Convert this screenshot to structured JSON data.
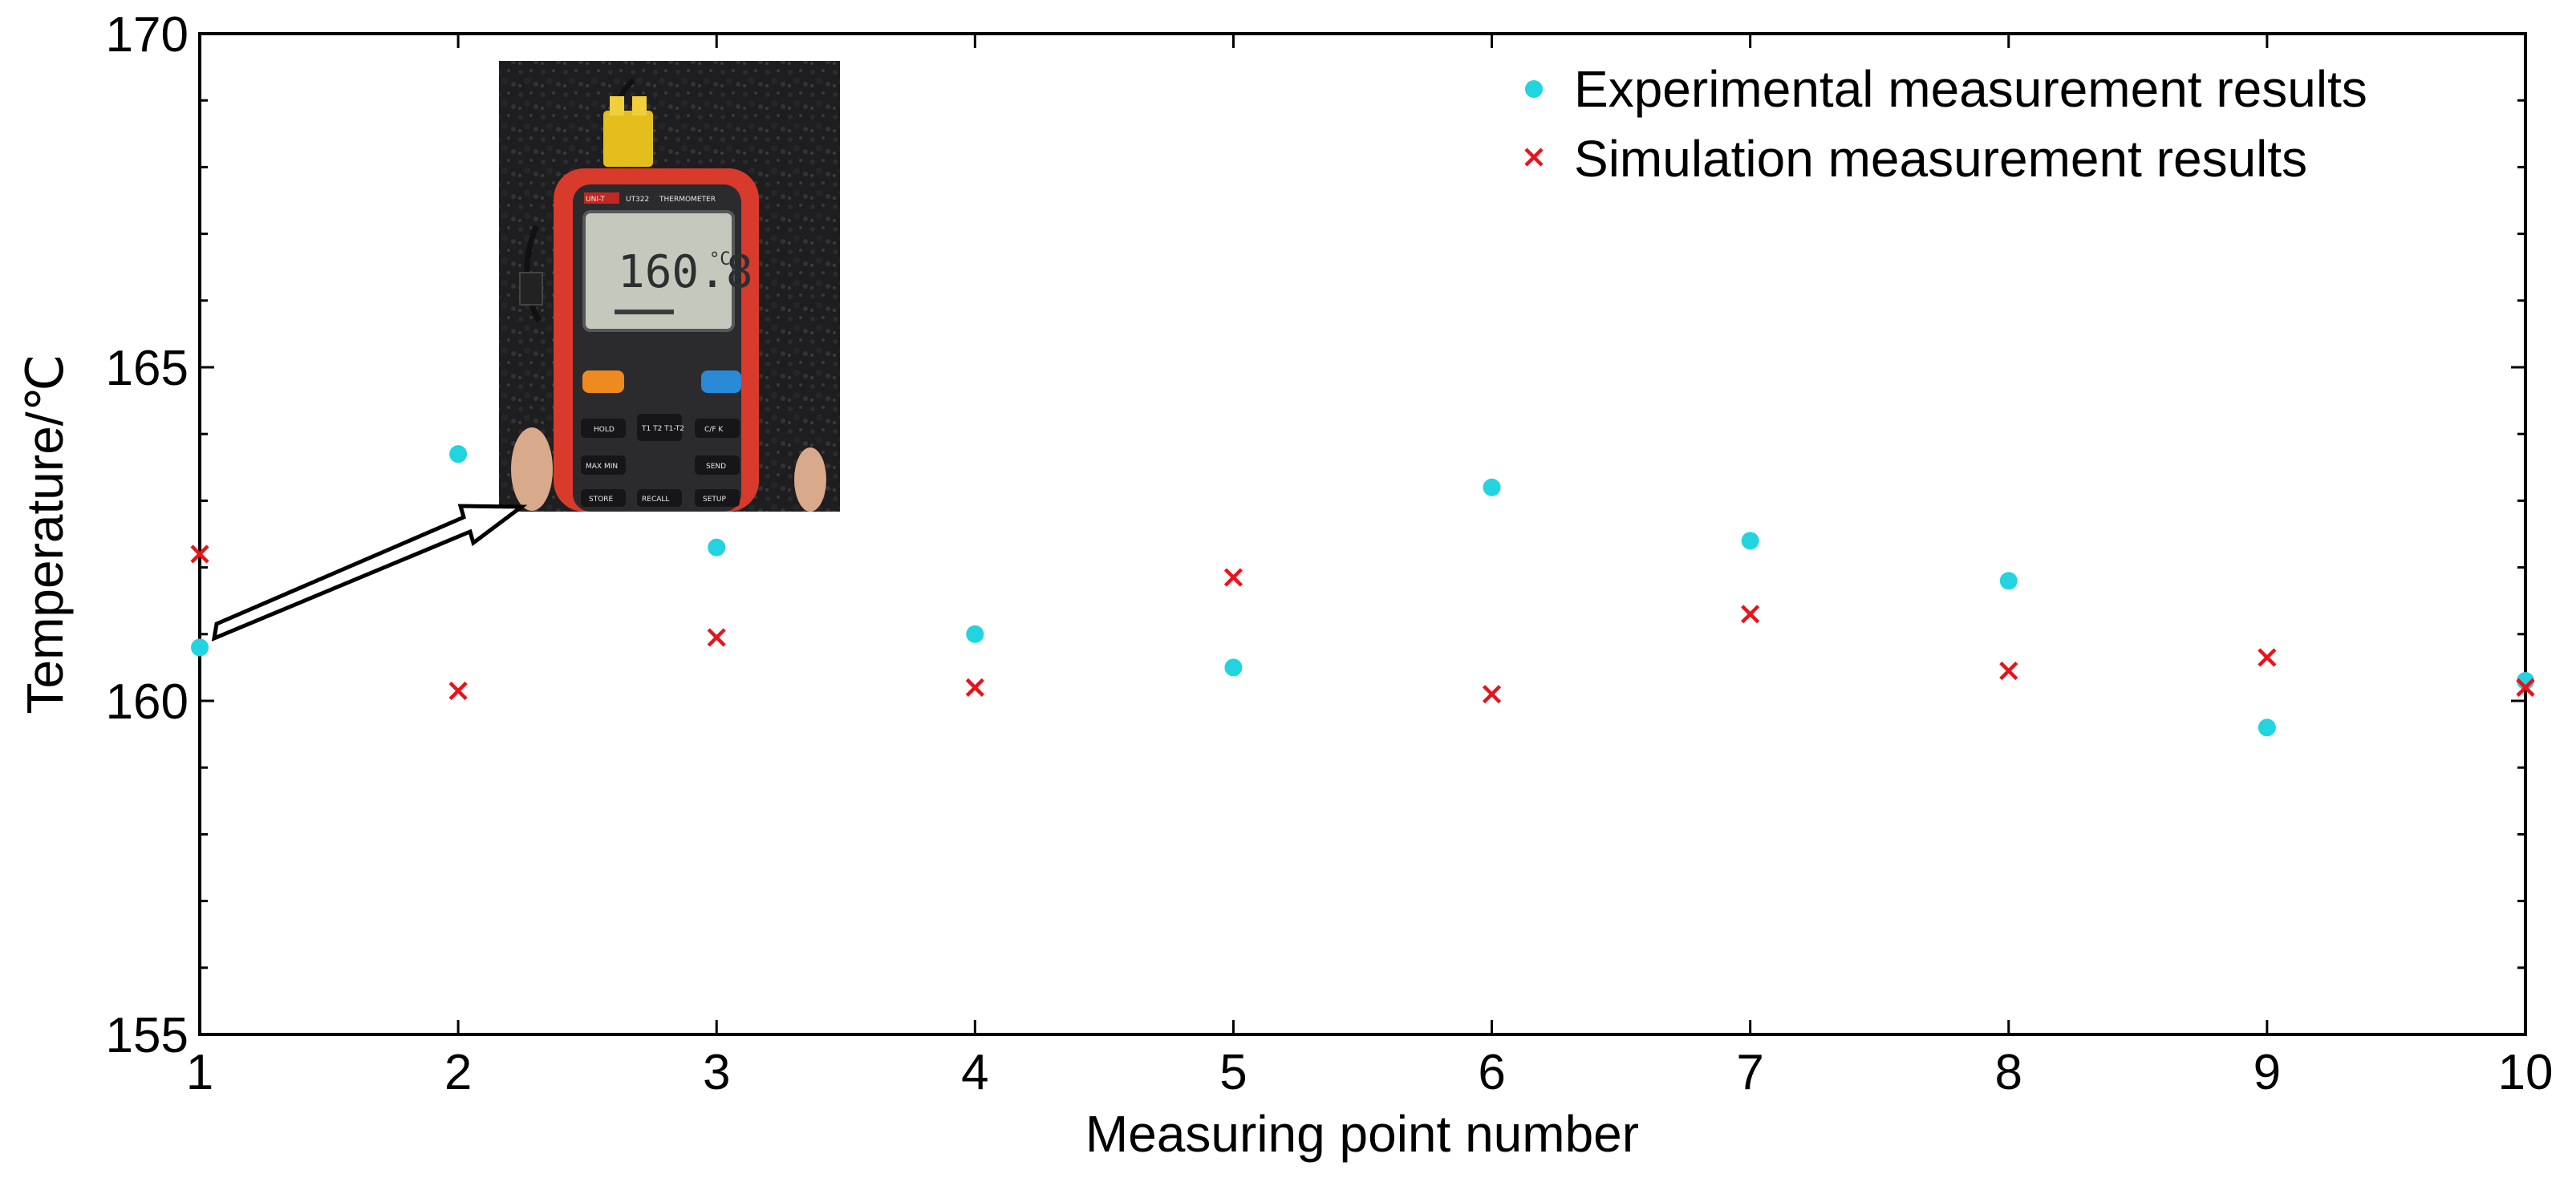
{
  "chart_data": {
    "type": "scatter",
    "title": "",
    "xlabel": "Measuring point number",
    "ylabel": "Temperature/℃",
    "xlim": [
      1,
      10
    ],
    "ylim": [
      155,
      170
    ],
    "xticks": [
      1,
      2,
      3,
      4,
      5,
      6,
      7,
      8,
      9,
      10
    ],
    "yticks": [
      155,
      160,
      165,
      170
    ],
    "grid": false,
    "legend_position": "top-right",
    "series": [
      {
        "name": "Experimental measurement results",
        "marker": "dot",
        "color": "#22d3e0",
        "x": [
          1,
          2,
          3,
          4,
          5,
          6,
          7,
          8,
          9,
          10
        ],
        "values": [
          160.8,
          163.7,
          162.3,
          161.0,
          160.5,
          163.2,
          162.4,
          161.8,
          159.6,
          160.3
        ]
      },
      {
        "name": "Simulation measurement results",
        "marker": "x",
        "color": "#e8141b",
        "x": [
          1,
          2,
          3,
          4,
          5,
          6,
          7,
          8,
          9,
          10
        ],
        "values": [
          162.2,
          160.15,
          160.95,
          160.2,
          161.85,
          160.1,
          161.3,
          160.45,
          160.65,
          160.2
        ]
      }
    ],
    "annotations": [
      {
        "type": "inset-photo",
        "description": "digital thermometer photo",
        "points_to_x": 1,
        "points_to_y": 160.8,
        "device_brand": "UNI-T",
        "device_model": "UT322",
        "device_name": "THERMOMETER",
        "display_reading": "160.8",
        "display_unit": "°C",
        "button_labels": [
          "HOLD",
          "T1 T2 T1-T2",
          "C/F K",
          "MAX MIN",
          "SEND",
          "STORE",
          "RECALL",
          "SETUP"
        ]
      }
    ]
  }
}
